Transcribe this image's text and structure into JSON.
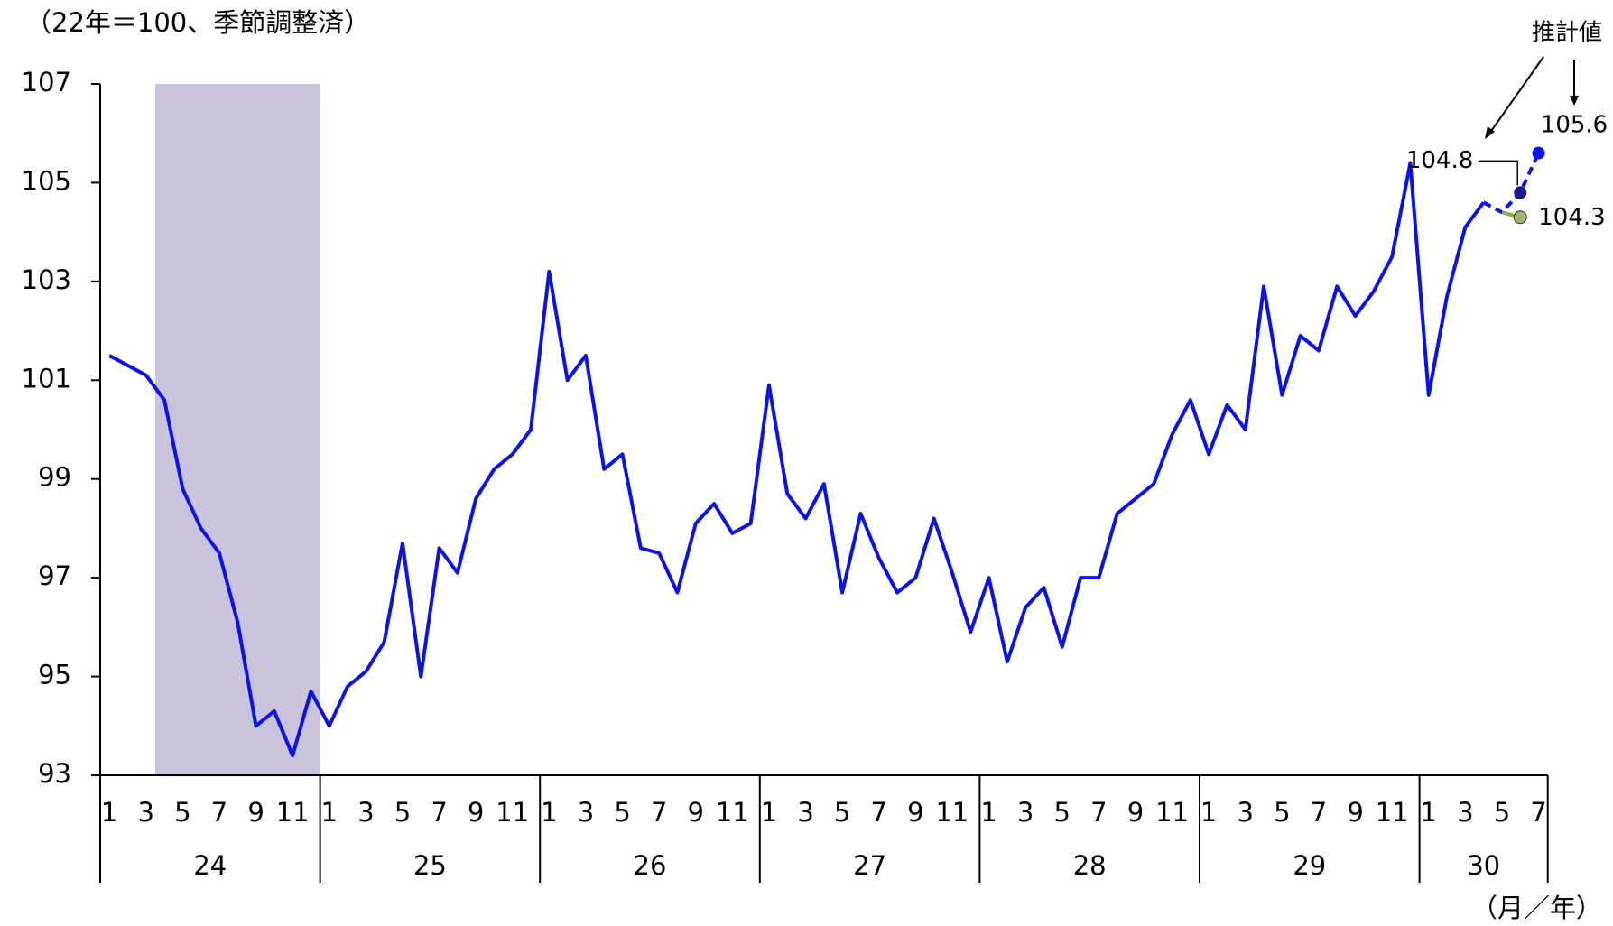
{
  "chart_data": {
    "type": "line",
    "title": "（22年＝100、季節調整済）",
    "x_label": "（月／年）",
    "annotation": "推計値",
    "categories": [
      "1",
      null,
      "3",
      null,
      "5",
      null,
      "7",
      null,
      "9",
      null,
      "11",
      null,
      "1",
      null,
      "3",
      null,
      "5",
      null,
      "7",
      null,
      "9",
      null,
      "11",
      null,
      "1",
      null,
      "3",
      null,
      "5",
      null,
      "7",
      null,
      "9",
      null,
      "11",
      null,
      "1",
      null,
      "3",
      null,
      "5",
      null,
      "7",
      null,
      "9",
      null,
      "11",
      null,
      "1",
      null,
      "3",
      null,
      "5",
      null,
      "7",
      null,
      "9",
      null,
      "11",
      null,
      "1",
      null,
      "3",
      null,
      "5",
      null,
      "7",
      null,
      "9",
      null,
      "11",
      null,
      "1",
      null,
      "3",
      null,
      "5",
      null,
      "7"
    ],
    "years": [
      "24",
      "25",
      "26",
      "27",
      "28",
      "29",
      "30"
    ],
    "recession": {
      "from": 3,
      "to": 11,
      "color": "#cbc3dc"
    },
    "series": [
      {
        "color": "#0a14e6",
        "style": "solid",
        "values": [
          101.5,
          101.3,
          101.1,
          100.6,
          98.8,
          98.0,
          97.5,
          96.1,
          94.0,
          94.3,
          93.4,
          94.7,
          94.0,
          94.8,
          95.1,
          95.7,
          97.7,
          95.0,
          97.6,
          97.1,
          98.6,
          99.2,
          99.5,
          100.0,
          103.2,
          101.0,
          101.5,
          99.2,
          99.5,
          97.6,
          97.5,
          96.7,
          98.1,
          98.5,
          97.9,
          98.1,
          100.9,
          98.7,
          98.2,
          98.9,
          96.7,
          98.3,
          97.4,
          96.7,
          97.0,
          98.2,
          97.1,
          95.9,
          97.0,
          95.3,
          96.4,
          96.8,
          95.6,
          97.0,
          97.0,
          98.3,
          98.6,
          98.9,
          99.9,
          100.6,
          99.5,
          100.5,
          100.0,
          102.9,
          100.7,
          101.9,
          101.6,
          102.9,
          102.3,
          102.8,
          103.5,
          105.4,
          100.7,
          102.7,
          104.1,
          104.6,
          null,
          null,
          null
        ]
      },
      {
        "color": "#0a14e6",
        "style": "dashed",
        "marker_color": [
          "#1a1a8c",
          "#0a14e6"
        ],
        "values": [
          null,
          null,
          null,
          null,
          null,
          null,
          null,
          null,
          null,
          null,
          null,
          null,
          null,
          null,
          null,
          null,
          null,
          null,
          null,
          null,
          null,
          null,
          null,
          null,
          null,
          null,
          null,
          null,
          null,
          null,
          null,
          null,
          null,
          null,
          null,
          null,
          null,
          null,
          null,
          null,
          null,
          null,
          null,
          null,
          null,
          null,
          null,
          null,
          null,
          null,
          null,
          null,
          null,
          null,
          null,
          null,
          null,
          null,
          null,
          null,
          null,
          null,
          null,
          null,
          null,
          null,
          null,
          null,
          null,
          null,
          null,
          null,
          null,
          null,
          null,
          104.6,
          104.4,
          104.8,
          105.6
        ]
      },
      {
        "color": "#8aa858",
        "style": "solid",
        "marker_color": [
          "#9cb86a"
        ],
        "values": [
          null,
          null,
          null,
          null,
          null,
          null,
          null,
          null,
          null,
          null,
          null,
          null,
          null,
          null,
          null,
          null,
          null,
          null,
          null,
          null,
          null,
          null,
          null,
          null,
          null,
          null,
          null,
          null,
          null,
          null,
          null,
          null,
          null,
          null,
          null,
          null,
          null,
          null,
          null,
          null,
          null,
          null,
          null,
          null,
          null,
          null,
          null,
          null,
          null,
          null,
          null,
          null,
          null,
          null,
          null,
          null,
          null,
          null,
          null,
          null,
          null,
          null,
          null,
          null,
          null,
          null,
          null,
          null,
          null,
          null,
          null,
          null,
          null,
          null,
          null,
          null,
          104.4,
          104.3,
          null
        ]
      }
    ],
    "ylim": [
      93,
      107
    ],
    "yticks": [
      93,
      95,
      97,
      99,
      101,
      103,
      105,
      107
    ],
    "grid": false
  }
}
